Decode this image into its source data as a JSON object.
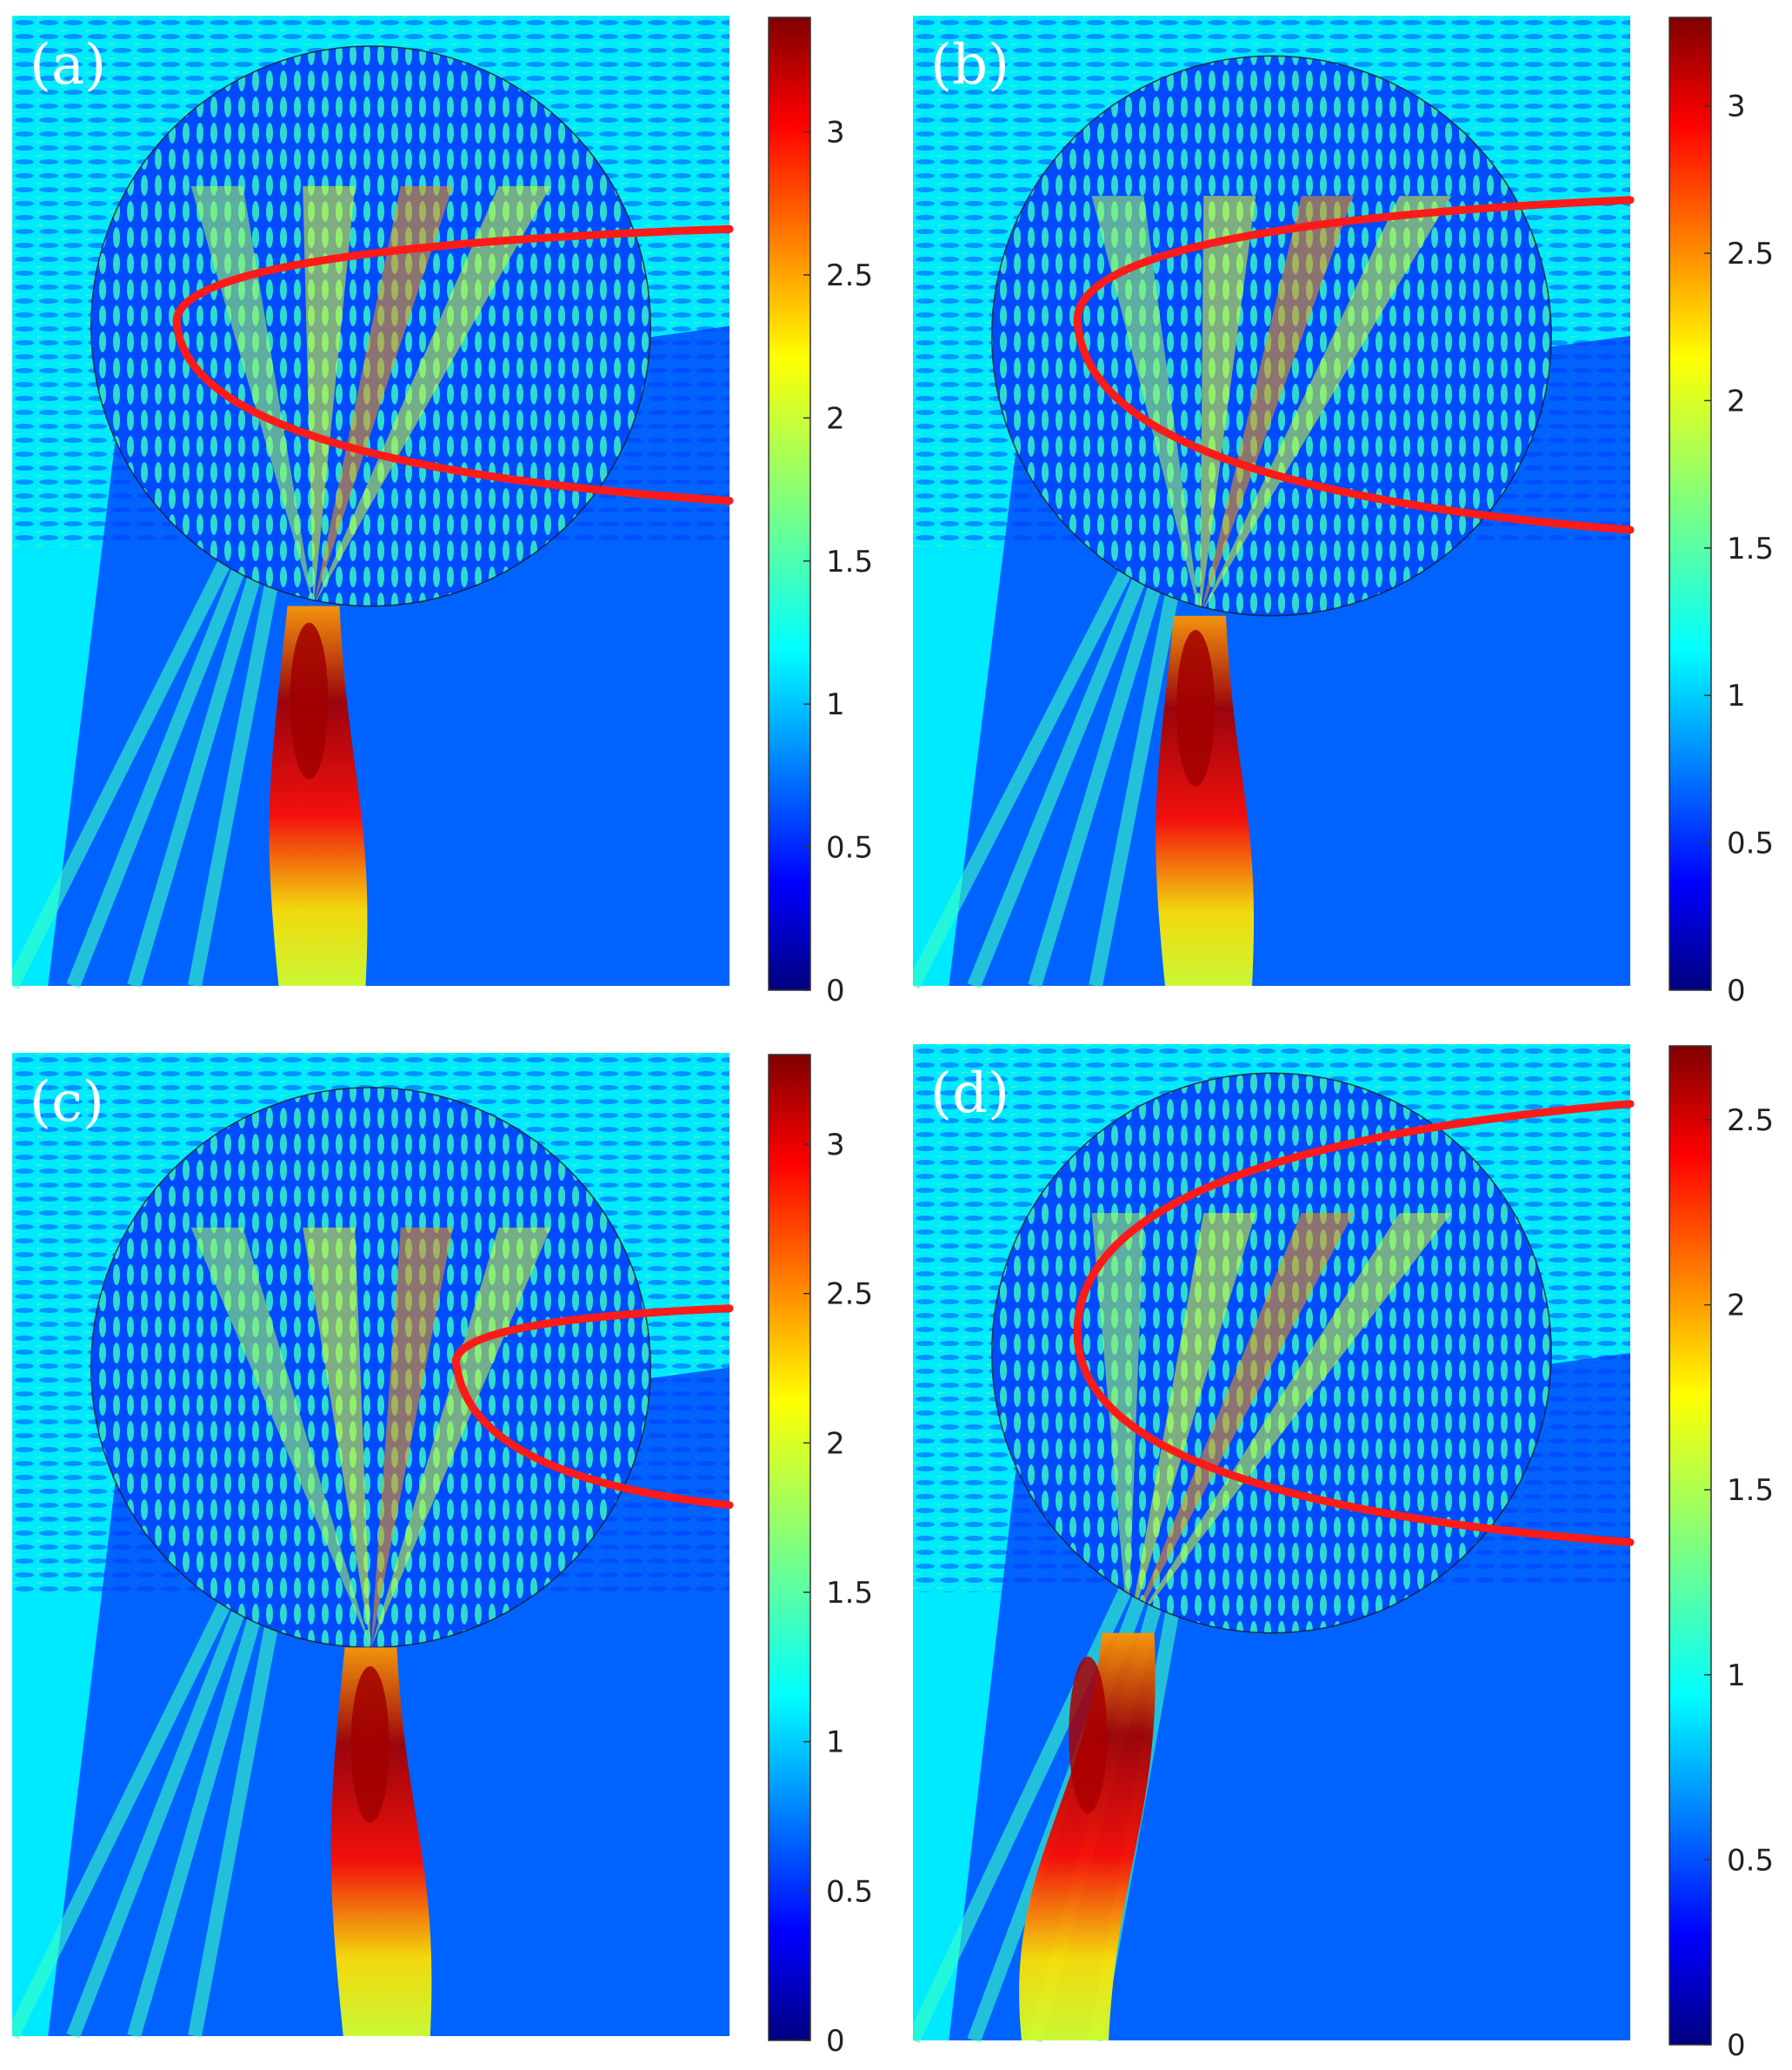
{
  "chart_data": [
    {
      "type": "heatmap",
      "panel_label": "(a)",
      "colorbar": {
        "min": 0,
        "max": 3.4,
        "ticks": [
          0,
          0.5,
          1,
          1.5,
          2,
          2.5,
          3
        ]
      },
      "has_parabola": true,
      "parabola": {
        "vertex": [
          0.23,
          0.32
        ],
        "a": 1.05,
        "upper_end": [
          1.0,
          0.22
        ],
        "lower_end": [
          1.0,
          0.5
        ]
      },
      "focus": {
        "x": 0.42,
        "y": 0.76,
        "x_bottom": 0.42,
        "peak": 3.3
      },
      "circle": {
        "cx": 0.5,
        "cy": 0.32,
        "r": 0.39
      }
    },
    {
      "type": "heatmap",
      "panel_label": "(b)",
      "colorbar": {
        "min": 0,
        "max": 3.3,
        "ticks": [
          0,
          0.5,
          1,
          1.5,
          2,
          2.5,
          3
        ]
      },
      "has_parabola": true,
      "parabola": {
        "vertex": [
          0.23,
          0.32
        ],
        "a": 1.05,
        "upper_end": [
          1.0,
          0.19
        ],
        "lower_end": [
          1.0,
          0.53
        ]
      },
      "focus": {
        "x": 0.4,
        "y": 0.74,
        "x_bottom": 0.4,
        "peak": 3.2
      },
      "circle": {
        "cx": 0.5,
        "cy": 0.33,
        "r": 0.39
      }
    },
    {
      "type": "heatmap",
      "panel_label": "(c)",
      "colorbar": {
        "min": 0,
        "max": 3.3,
        "ticks": [
          0,
          0.5,
          1,
          1.5,
          2,
          2.5,
          3
        ]
      },
      "has_parabola": true,
      "parabola": {
        "vertex": [
          0.62,
          0.32
        ],
        "a": 1.6,
        "upper_end": [
          1.0,
          0.26
        ],
        "lower_end": [
          1.0,
          0.46
        ]
      },
      "focus": {
        "x": 0.5,
        "y": 0.68,
        "x_bottom": 0.51,
        "peak": 3.2
      },
      "circle": {
        "cx": 0.5,
        "cy": 0.32,
        "r": 0.39
      }
    },
    {
      "type": "heatmap",
      "panel_label": "(d)",
      "colorbar": {
        "min": 0,
        "max": 2.7,
        "ticks": [
          0,
          0.5,
          1,
          1.5,
          2,
          2.5
        ]
      },
      "has_parabola": true,
      "parabola": {
        "vertex": [
          0.23,
          0.3
        ],
        "a": 0.95,
        "upper_end": [
          1.0,
          0.06
        ],
        "lower_end": [
          1.0,
          0.5
        ]
      },
      "focus": {
        "x": 0.3,
        "y": 0.76,
        "x_bottom": 0.2,
        "peak": 2.6
      },
      "circle": {
        "cx": 0.5,
        "cy": 0.31,
        "r": 0.39
      }
    }
  ]
}
